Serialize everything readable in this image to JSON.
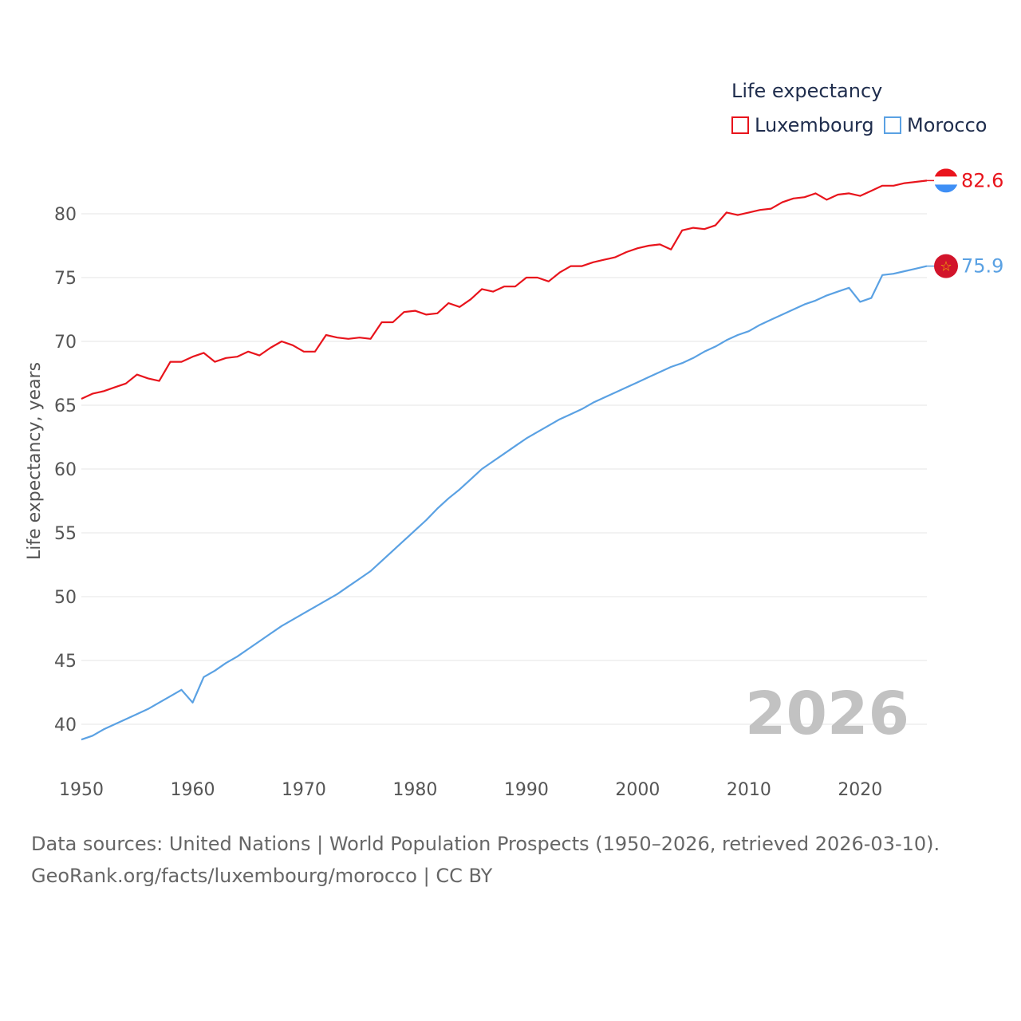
{
  "chart_data": {
    "type": "line",
    "legend_title": "Life expectancy",
    "ylabel": "Life expectancy, years",
    "xlabel": "",
    "xlim": [
      1950,
      2026
    ],
    "ylim": [
      37,
      83.5
    ],
    "x_ticks": [
      1950,
      1960,
      1970,
      1980,
      1990,
      2000,
      2010,
      2020
    ],
    "y_ticks": [
      40,
      45,
      50,
      55,
      60,
      65,
      70,
      75,
      80
    ],
    "year_watermark": "2026",
    "x": [
      1950,
      1951,
      1952,
      1953,
      1954,
      1955,
      1956,
      1957,
      1958,
      1959,
      1960,
      1961,
      1962,
      1963,
      1964,
      1965,
      1966,
      1967,
      1968,
      1969,
      1970,
      1971,
      1972,
      1973,
      1974,
      1975,
      1976,
      1977,
      1978,
      1979,
      1980,
      1981,
      1982,
      1983,
      1984,
      1985,
      1986,
      1987,
      1988,
      1989,
      1990,
      1991,
      1992,
      1993,
      1994,
      1995,
      1996,
      1997,
      1998,
      1999,
      2000,
      2001,
      2002,
      2003,
      2004,
      2005,
      2006,
      2007,
      2008,
      2009,
      2010,
      2011,
      2012,
      2013,
      2014,
      2015,
      2016,
      2017,
      2018,
      2019,
      2020,
      2021,
      2022,
      2023,
      2024,
      2025,
      2026
    ],
    "series": [
      {
        "name": "Luxembourg",
        "color": "#e8141c",
        "flag": "luxembourg-flag",
        "end_label": "82.6",
        "values": [
          65.5,
          65.9,
          66.1,
          66.4,
          66.7,
          67.4,
          67.1,
          66.9,
          68.4,
          68.4,
          68.8,
          69.1,
          68.4,
          68.7,
          68.8,
          69.2,
          68.9,
          69.5,
          70.0,
          69.7,
          69.2,
          69.2,
          70.5,
          70.3,
          70.2,
          70.3,
          70.2,
          71.5,
          71.5,
          72.3,
          72.4,
          72.1,
          72.2,
          73.0,
          72.7,
          73.3,
          74.1,
          73.9,
          74.3,
          74.3,
          75.0,
          75.0,
          74.7,
          75.4,
          75.9,
          75.9,
          76.2,
          76.4,
          76.6,
          77.0,
          77.3,
          77.5,
          77.6,
          77.2,
          78.7,
          78.9,
          78.8,
          79.1,
          80.1,
          79.9,
          80.1,
          80.3,
          80.4,
          80.9,
          81.2,
          81.3,
          81.6,
          81.1,
          81.5,
          81.6,
          81.4,
          81.8,
          82.2,
          82.2,
          82.4,
          82.5,
          82.6
        ]
      },
      {
        "name": "Morocco",
        "color": "#5aa1e3",
        "flag": "morocco-flag",
        "end_label": "75.9",
        "values": [
          38.8,
          39.1,
          39.6,
          40.0,
          40.4,
          40.8,
          41.2,
          41.7,
          42.2,
          42.7,
          41.7,
          43.7,
          44.2,
          44.8,
          45.3,
          45.9,
          46.5,
          47.1,
          47.7,
          48.2,
          48.7,
          49.2,
          49.7,
          50.2,
          50.8,
          51.4,
          52.0,
          52.8,
          53.6,
          54.4,
          55.2,
          56.0,
          56.9,
          57.7,
          58.4,
          59.2,
          60.0,
          60.6,
          61.2,
          61.8,
          62.4,
          62.9,
          63.4,
          63.9,
          64.3,
          64.7,
          65.2,
          65.6,
          66.0,
          66.4,
          66.8,
          67.2,
          67.6,
          68.0,
          68.3,
          68.7,
          69.2,
          69.6,
          70.1,
          70.5,
          70.8,
          71.3,
          71.7,
          72.1,
          72.5,
          72.9,
          73.2,
          73.6,
          73.9,
          74.2,
          73.1,
          73.4,
          75.2,
          75.3,
          75.5,
          75.7,
          75.9
        ]
      }
    ]
  },
  "footer": {
    "line1": "Data sources: United Nations | World Population Prospects (1950–2026, retrieved 2026-03-10).",
    "line2": "GeoRank.org/facts/luxembourg/morocco | CC BY"
  }
}
